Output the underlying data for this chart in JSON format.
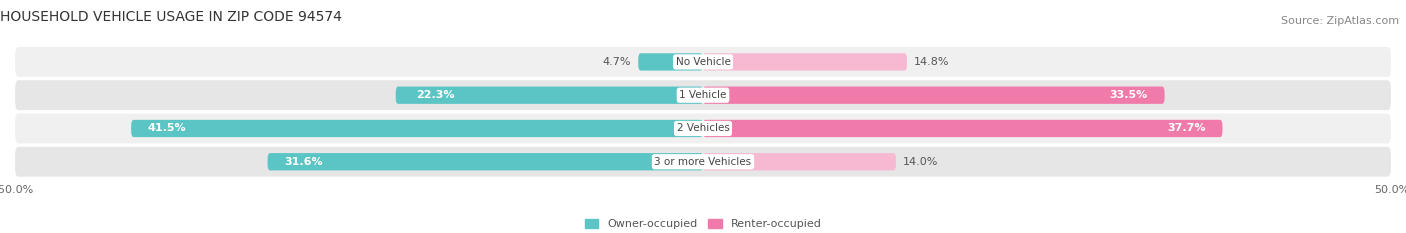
{
  "title": "HOUSEHOLD VEHICLE USAGE IN ZIP CODE 94574",
  "source": "Source: ZipAtlas.com",
  "categories": [
    "No Vehicle",
    "1 Vehicle",
    "2 Vehicles",
    "3 or more Vehicles"
  ],
  "owner_values": [
    4.7,
    22.3,
    41.5,
    31.6
  ],
  "renter_values": [
    14.8,
    33.5,
    37.7,
    14.0
  ],
  "owner_color": "#5bc4c4",
  "renter_color": "#f07baa",
  "renter_light_color": "#f7b8d2",
  "row_bg_color": "#efefef",
  "owner_label": "Owner-occupied",
  "renter_label": "Renter-occupied",
  "title_fontsize": 10,
  "source_fontsize": 8,
  "tick_fontsize": 8,
  "value_fontsize": 8,
  "cat_fontsize": 7.5,
  "bar_height": 0.52,
  "xlim_left": -50,
  "xlim_right": 50
}
